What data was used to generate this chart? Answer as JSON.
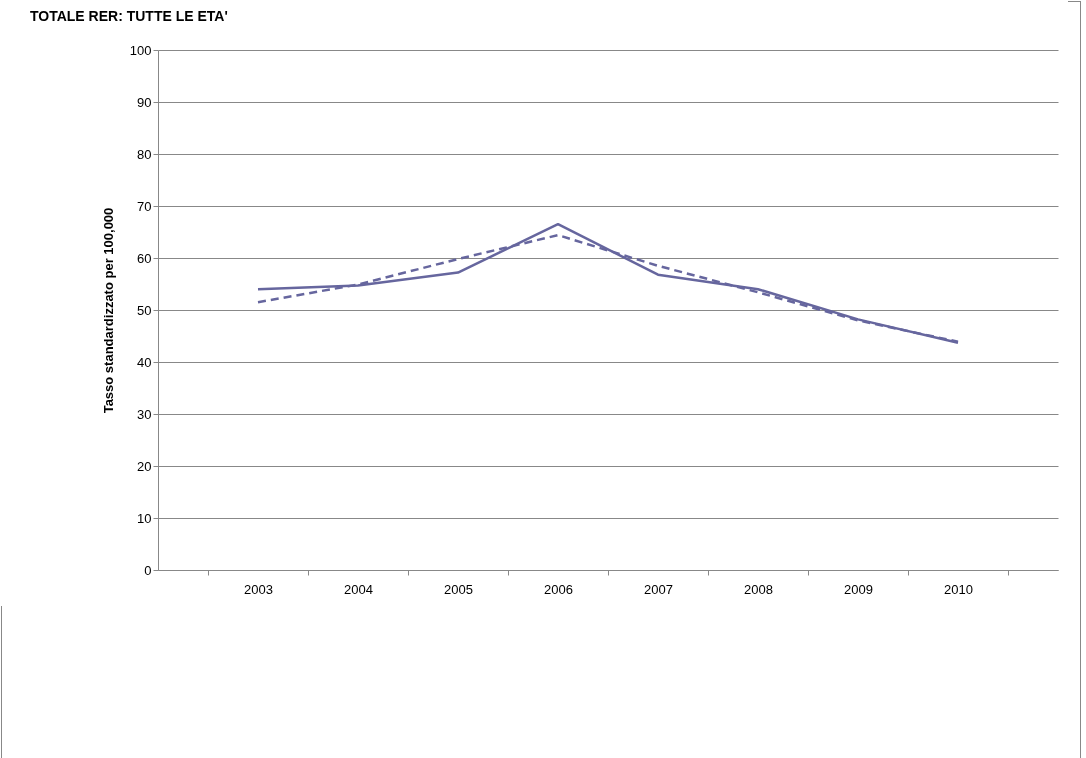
{
  "chart_data": {
    "type": "line",
    "title": "TOTALE RER:  TUTTE LE ETA'",
    "ylabel": "Tasso standardizzato per 100,000",
    "categories": [
      "2003",
      "2004",
      "2005",
      "2006",
      "2007",
      "2008",
      "2009",
      "2010"
    ],
    "series": [
      {
        "color": "#66669e",
        "line_style": "solid",
        "values": [
          54.0,
          54.7,
          57.2,
          66.5,
          56.8,
          54.0,
          48.2,
          43.7
        ]
      },
      {
        "color": "#66669e",
        "line_style": "dashed",
        "values": [
          51.5,
          54.9,
          59.8,
          64.4,
          58.5,
          53.4,
          48.0,
          43.9
        ]
      }
    ],
    "ylim": [
      0,
      100
    ],
    "yticks": [
      0,
      10,
      20,
      30,
      40,
      50,
      60,
      70,
      80,
      90,
      100
    ],
    "grid": "y",
    "marker": "none"
  }
}
